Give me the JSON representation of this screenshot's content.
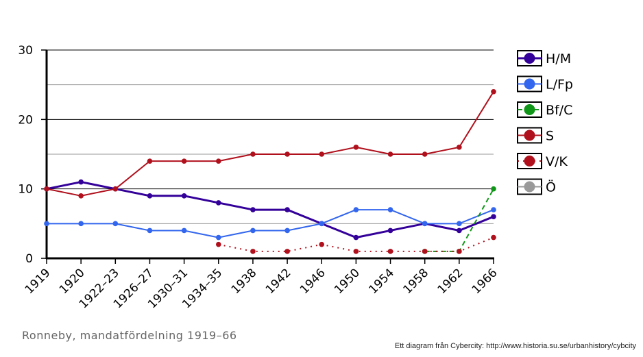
{
  "chart_data": {
    "type": "line",
    "title": "Ronneby, mandatfördelning 1919–66",
    "note": "Ett diagram från Cybercity: http://www.historia.su.se/urbanhistory/cybcity",
    "categories": [
      "1919",
      "1920",
      "1922–23",
      "1926–27",
      "1930–31",
      "1934–35",
      "1938",
      "1942",
      "1946",
      "1950",
      "1954",
      "1958",
      "1962",
      "1966"
    ],
    "series": [
      {
        "name": "H/M",
        "color": "#330099",
        "line_style": "solid",
        "values": [
          10,
          11,
          10,
          9,
          9,
          8,
          7,
          7,
          5,
          3,
          4,
          5,
          4,
          6
        ]
      },
      {
        "name": "L/Fp",
        "color": "#3366ee",
        "line_style": "solid",
        "values": [
          5,
          5,
          5,
          4,
          4,
          3,
          4,
          4,
          5,
          7,
          7,
          5,
          5,
          7
        ]
      },
      {
        "name": "Bf/C",
        "color": "#109618",
        "line_style": "dashed",
        "values": [
          null,
          null,
          null,
          null,
          null,
          null,
          null,
          null,
          null,
          null,
          null,
          1,
          1,
          10
        ]
      },
      {
        "name": "S",
        "color": "#b0101c",
        "line_style": "solid",
        "values": [
          10,
          9,
          10,
          14,
          14,
          14,
          15,
          15,
          15,
          16,
          15,
          15,
          16,
          24
        ]
      },
      {
        "name": "V/K",
        "color": "#b0101c",
        "line_style": "dotted",
        "values": [
          null,
          null,
          null,
          null,
          null,
          2,
          1,
          1,
          2,
          1,
          1,
          1,
          1,
          3
        ]
      },
      {
        "name": "Ö",
        "color": "#999999",
        "line_style": "solid",
        "values": [
          null,
          null,
          null,
          null,
          null,
          null,
          null,
          null,
          null,
          null,
          null,
          null,
          null,
          null
        ]
      }
    ],
    "ylim": [
      0,
      30
    ],
    "yticks": [
      0,
      10,
      20,
      30
    ],
    "minor_gridlines": [
      5,
      15,
      25
    ],
    "grid": true,
    "legend": "right"
  }
}
